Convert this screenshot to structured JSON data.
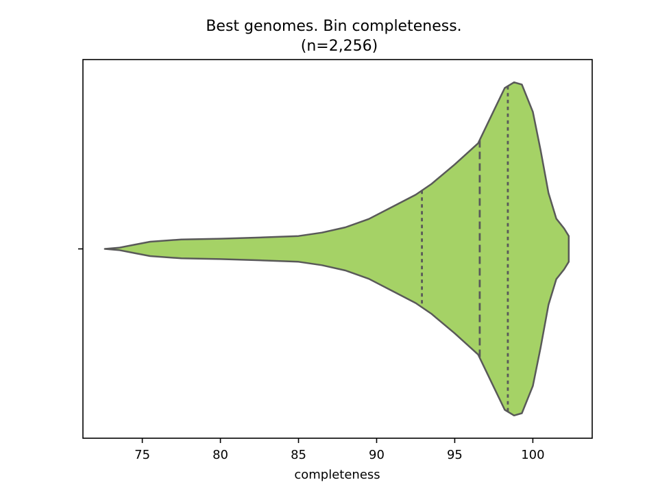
{
  "colors": {
    "violin_fill": "#a5d266",
    "outline": "#595959",
    "axis": "#000000",
    "background": "#ffffff"
  },
  "chart_data": {
    "type": "violin",
    "title": "Best genomes. Bin completeness.",
    "subtitle": "(n=2,256)",
    "xlabel": "completeness",
    "ylabel": "",
    "xlim": [
      71.2,
      103.8
    ],
    "xticks": [
      75,
      80,
      85,
      90,
      95,
      100
    ],
    "xtick_labels": [
      "75",
      "80",
      "85",
      "90",
      "95",
      "100"
    ],
    "yticks": [
      0
    ],
    "ytick_labels": [
      ""
    ],
    "grid": false,
    "orientation": "horizontal",
    "density_max_halfwidth": 0.44,
    "density_profile": [
      [
        72.6,
        0.0
      ],
      [
        73.5,
        0.003
      ],
      [
        74.5,
        0.011
      ],
      [
        75.5,
        0.019
      ],
      [
        77.5,
        0.025
      ],
      [
        80.0,
        0.027
      ],
      [
        82.5,
        0.03
      ],
      [
        85.0,
        0.034
      ],
      [
        86.5,
        0.043
      ],
      [
        88.0,
        0.057
      ],
      [
        89.5,
        0.079
      ],
      [
        91.0,
        0.111
      ],
      [
        92.5,
        0.143
      ],
      [
        93.5,
        0.171
      ],
      [
        95.0,
        0.223
      ],
      [
        96.5,
        0.279
      ],
      [
        97.5,
        0.365
      ],
      [
        98.2,
        0.425
      ],
      [
        98.8,
        0.44
      ],
      [
        99.3,
        0.434
      ],
      [
        100.0,
        0.362
      ],
      [
        100.5,
        0.26
      ],
      [
        101.0,
        0.148
      ],
      [
        101.5,
        0.08
      ],
      [
        102.0,
        0.054
      ],
      [
        102.3,
        0.034
      ],
      [
        102.3,
        0.0
      ]
    ],
    "quartiles": {
      "q1": 92.9,
      "median": 96.6,
      "q3": 98.4
    }
  }
}
